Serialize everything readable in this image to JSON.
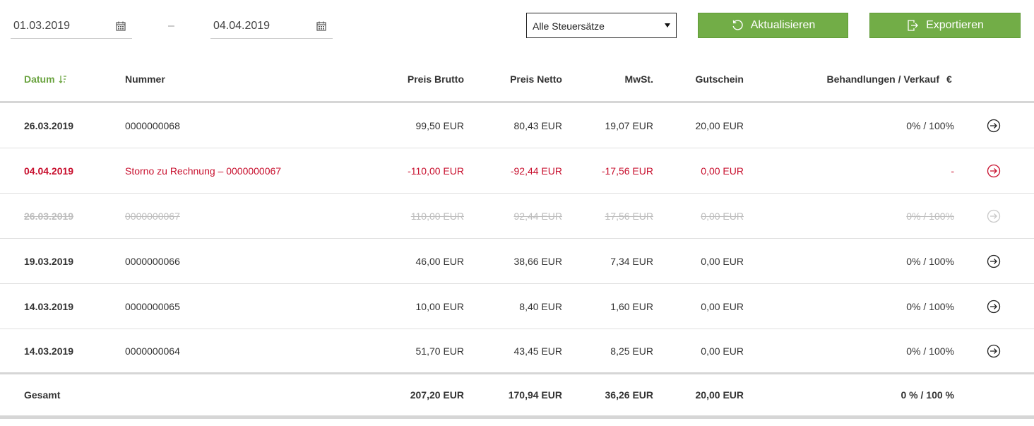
{
  "filters": {
    "date_from": "01.03.2019",
    "date_separator": "–",
    "date_to": "04.04.2019",
    "tax_select": "Alle Steuersätze",
    "refresh_label": "Aktualisieren",
    "export_label": "Exportieren"
  },
  "table": {
    "headers": {
      "date": "Datum",
      "number": "Nummer",
      "brutto": "Preis Brutto",
      "netto": "Preis Netto",
      "mwst": "MwSt.",
      "gutschein": "Gutschein",
      "behandlungen": "Behandlungen / Verkauf",
      "currency": "€"
    },
    "rows": [
      {
        "date": "26.03.2019",
        "number": "0000000068",
        "brutto": "99,50 EUR",
        "netto": "80,43 EUR",
        "mwst": "19,07 EUR",
        "gutschein": "20,00 EUR",
        "ratio": "0% / 100%",
        "state": "normal"
      },
      {
        "date": "04.04.2019",
        "number": "Storno zu Rechnung – 0000000067",
        "brutto": "-110,00 EUR",
        "netto": "-92,44 EUR",
        "mwst": "-17,56 EUR",
        "gutschein": "0,00 EUR",
        "ratio": "-",
        "state": "storno"
      },
      {
        "date": "26.03.2019",
        "number": "0000000067",
        "brutto": "110,00 EUR",
        "netto": "92,44 EUR",
        "mwst": "17,56 EUR",
        "gutschein": "0,00 EUR",
        "ratio": "0% / 100%",
        "state": "cancelled"
      },
      {
        "date": "19.03.2019",
        "number": "0000000066",
        "brutto": "46,00 EUR",
        "netto": "38,66 EUR",
        "mwst": "7,34 EUR",
        "gutschein": "0,00 EUR",
        "ratio": "0% / 100%",
        "state": "normal"
      },
      {
        "date": "14.03.2019",
        "number": "0000000065",
        "brutto": "10,00 EUR",
        "netto": "8,40 EUR",
        "mwst": "1,60 EUR",
        "gutschein": "0,00 EUR",
        "ratio": "0% / 100%",
        "state": "normal"
      },
      {
        "date": "14.03.2019",
        "number": "0000000064",
        "brutto": "51,70 EUR",
        "netto": "43,45 EUR",
        "mwst": "8,25 EUR",
        "gutschein": "0,00 EUR",
        "ratio": "0% / 100%",
        "state": "normal"
      }
    ],
    "footer": {
      "label": "Gesamt",
      "brutto": "207,20 EUR",
      "netto": "170,94 EUR",
      "mwst": "36,26 EUR",
      "gutschein": "20,00 EUR",
      "ratio": "0 % / 100 %"
    }
  },
  "colors": {
    "accent_green": "#72ad47",
    "storno_red": "#c8102e",
    "cancelled_gray": "#bdbdbd"
  },
  "icons": {
    "calendar": "calendar-icon",
    "refresh": "refresh-icon",
    "export": "export-icon",
    "sort": "sort-icon",
    "open_row": "arrow-circle-right-icon"
  }
}
